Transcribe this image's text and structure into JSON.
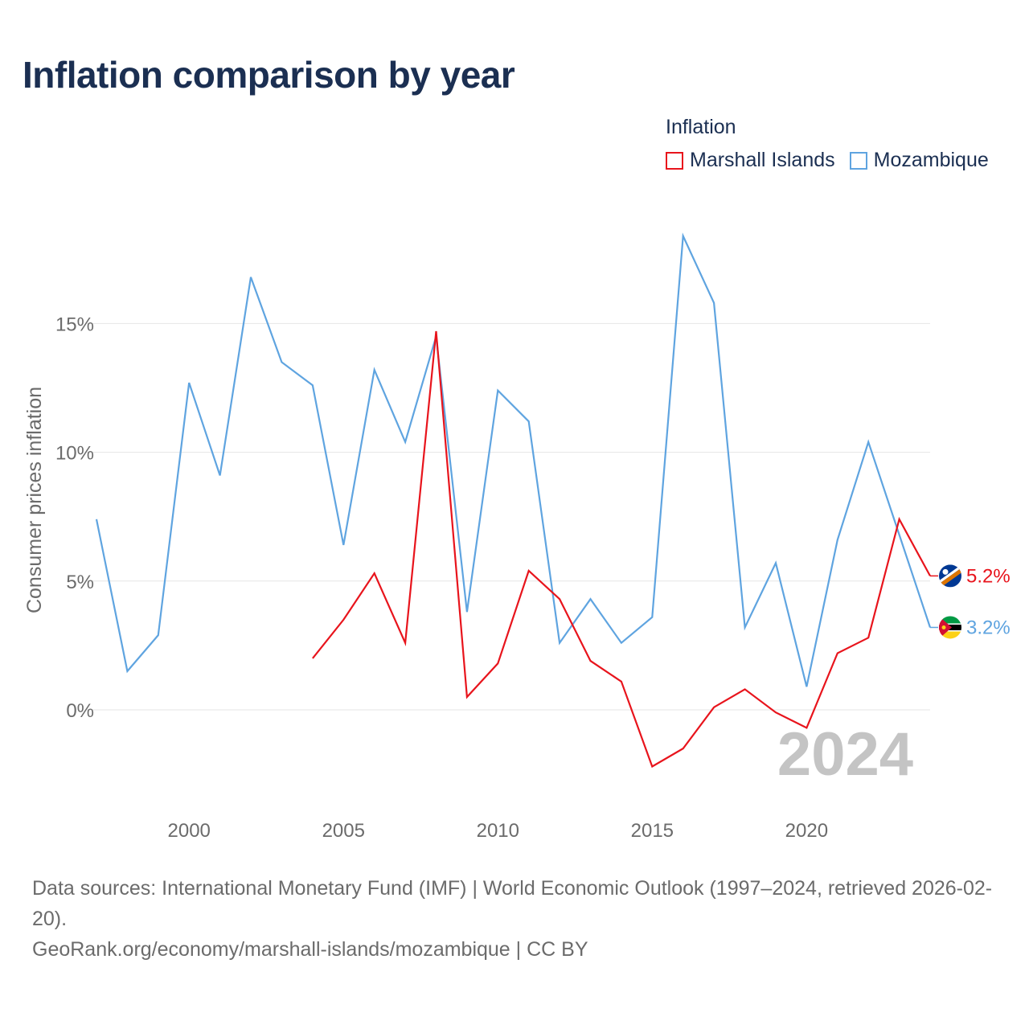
{
  "title": "Inflation comparison by year",
  "legend": {
    "title": "Inflation",
    "items": [
      {
        "label": "Marshall Islands",
        "color": "#e8141c"
      },
      {
        "label": "Mozambique",
        "color": "#5fa4e0"
      }
    ]
  },
  "footer": {
    "sources": "Data sources: International Monetary Fund (IMF) | World Economic Outlook (1997–2024, retrieved 2026-02-20).",
    "link": "GeoRank.org/economy/marshall-islands/mozambique | CC BY"
  },
  "chart_data": {
    "type": "line",
    "title": "Inflation comparison by year",
    "xlabel": "",
    "ylabel": "Consumer prices inflation",
    "xlim": [
      1997,
      2024
    ],
    "ylim": [
      -3,
      20
    ],
    "xticks": [
      2000,
      2005,
      2010,
      2015,
      2020
    ],
    "xtick_labels": [
      "2000",
      "2005",
      "2010",
      "2015",
      "2020"
    ],
    "yticks": [
      0,
      5,
      10,
      15
    ],
    "ytick_labels": [
      "0%",
      "5%",
      "10%",
      "15%"
    ],
    "grid": true,
    "watermark_year": "2024",
    "series": [
      {
        "name": "Marshall Islands",
        "color": "#e8141c",
        "end_label": "5.2%",
        "x": [
          2004,
          2005,
          2006,
          2007,
          2008,
          2009,
          2010,
          2011,
          2012,
          2013,
          2014,
          2015,
          2016,
          2017,
          2018,
          2019,
          2020,
          2021,
          2022,
          2023,
          2024
        ],
        "values": [
          2.0,
          3.5,
          5.3,
          2.6,
          14.7,
          0.5,
          1.8,
          5.4,
          4.3,
          1.9,
          1.1,
          -2.2,
          -1.5,
          0.1,
          0.8,
          -0.1,
          -0.7,
          2.2,
          2.8,
          7.4,
          5.2
        ]
      },
      {
        "name": "Mozambique",
        "color": "#5fa4e0",
        "end_label": "3.2%",
        "x": [
          1997,
          1998,
          1999,
          2000,
          2001,
          2002,
          2003,
          2004,
          2005,
          2006,
          2007,
          2008,
          2009,
          2010,
          2011,
          2012,
          2013,
          2014,
          2015,
          2016,
          2017,
          2018,
          2019,
          2020,
          2021,
          2022,
          2023,
          2024
        ],
        "values": [
          7.4,
          1.5,
          2.9,
          12.7,
          9.1,
          16.8,
          13.5,
          12.6,
          6.4,
          13.2,
          10.4,
          14.5,
          3.8,
          12.4,
          11.2,
          2.6,
          4.3,
          2.6,
          3.6,
          18.4,
          15.8,
          3.2,
          5.7,
          0.9,
          6.6,
          10.4,
          6.8,
          3.2
        ]
      }
    ]
  }
}
